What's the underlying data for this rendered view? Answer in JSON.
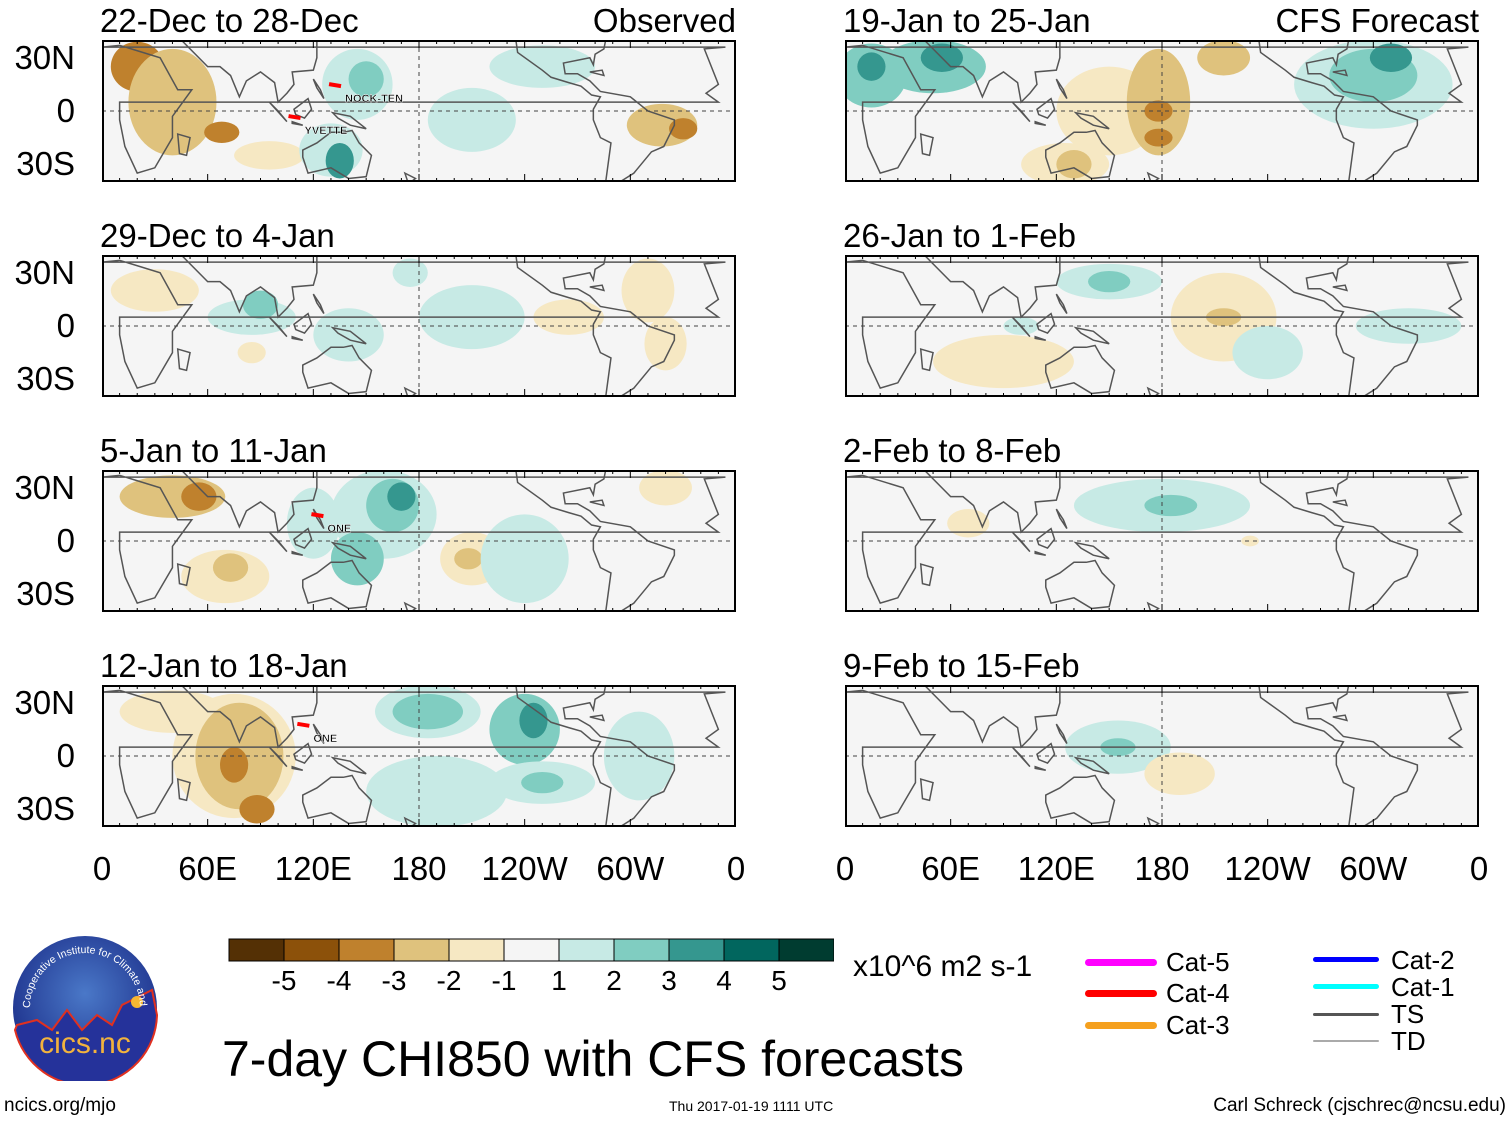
{
  "columns": [
    {
      "label": "Observed"
    },
    {
      "label": "CFS Forecast"
    }
  ],
  "y_ticks": [
    "30N",
    "0",
    "30S"
  ],
  "x_ticks": [
    "0",
    "60E",
    "120E",
    "180",
    "120W",
    "60W",
    "0"
  ],
  "panels": [
    {
      "title": "22-Dec to 28-Dec",
      "col": 0,
      "row": 0,
      "storms": [
        {
          "name": "NOCK-TEN",
          "lon": 138,
          "lat": 5
        },
        {
          "name": "YVETTE",
          "lon": 115,
          "lat": -13
        }
      ],
      "anomalies": [
        [
          20,
          25,
          15,
          14,
          -3
        ],
        [
          40,
          5,
          25,
          30,
          -2
        ],
        [
          68,
          -12,
          10,
          6,
          -3
        ],
        [
          95,
          -25,
          20,
          8,
          -1
        ],
        [
          145,
          15,
          20,
          20,
          1
        ],
        [
          150,
          18,
          10,
          10,
          2
        ],
        [
          130,
          -22,
          18,
          15,
          1
        ],
        [
          135,
          -28,
          8,
          10,
          3
        ],
        [
          210,
          -5,
          25,
          18,
          1
        ],
        [
          250,
          25,
          30,
          12,
          1
        ],
        [
          318,
          -8,
          20,
          12,
          -2
        ],
        [
          330,
          -10,
          8,
          6,
          -3
        ]
      ]
    },
    {
      "title": "29-Dec to 4-Jan",
      "col": 0,
      "row": 1,
      "storms": [],
      "anomalies": [
        [
          30,
          20,
          25,
          12,
          -1
        ],
        [
          85,
          -15,
          8,
          6,
          -1
        ],
        [
          85,
          5,
          25,
          10,
          1
        ],
        [
          90,
          12,
          10,
          8,
          2
        ],
        [
          140,
          -5,
          20,
          15,
          1
        ],
        [
          175,
          30,
          10,
          8,
          1
        ],
        [
          210,
          5,
          30,
          18,
          1
        ],
        [
          265,
          5,
          20,
          10,
          -1
        ],
        [
          310,
          20,
          15,
          18,
          -1
        ],
        [
          320,
          -10,
          12,
          15,
          -1
        ]
      ]
    },
    {
      "title": "5-Jan to 11-Jan",
      "col": 0,
      "row": 2,
      "storms": [
        {
          "name": "ONE",
          "lon": 128,
          "lat": 5
        }
      ],
      "anomalies": [
        [
          40,
          25,
          30,
          12,
          -2
        ],
        [
          55,
          25,
          10,
          8,
          -3
        ],
        [
          70,
          -20,
          25,
          15,
          -1
        ],
        [
          73,
          -15,
          10,
          8,
          -2
        ],
        [
          120,
          10,
          15,
          20,
          1
        ],
        [
          160,
          15,
          30,
          25,
          1
        ],
        [
          165,
          20,
          15,
          15,
          2
        ],
        [
          170,
          25,
          8,
          8,
          3
        ],
        [
          145,
          -10,
          15,
          15,
          2
        ],
        [
          210,
          -10,
          18,
          15,
          -1
        ],
        [
          208,
          -10,
          8,
          6,
          -2
        ],
        [
          240,
          -10,
          25,
          25,
          1
        ],
        [
          320,
          30,
          15,
          10,
          -1
        ]
      ]
    },
    {
      "title": "12-Jan to 18-Jan",
      "col": 0,
      "row": 3,
      "storms": [
        {
          "name": "ONE",
          "lon": 120,
          "lat": 8
        }
      ],
      "anomalies": [
        [
          40,
          25,
          30,
          12,
          -1
        ],
        [
          75,
          0,
          35,
          35,
          -1
        ],
        [
          78,
          0,
          25,
          30,
          -2
        ],
        [
          75,
          -5,
          8,
          10,
          -3
        ],
        [
          88,
          -30,
          10,
          8,
          -3
        ],
        [
          185,
          25,
          30,
          15,
          1
        ],
        [
          185,
          25,
          20,
          10,
          2
        ],
        [
          190,
          -20,
          40,
          20,
          1
        ],
        [
          240,
          15,
          20,
          20,
          2
        ],
        [
          245,
          20,
          8,
          10,
          3
        ],
        [
          250,
          -15,
          30,
          12,
          1
        ],
        [
          250,
          -15,
          12,
          6,
          2
        ],
        [
          305,
          0,
          20,
          25,
          1
        ]
      ]
    },
    {
      "title": "19-Jan to 25-Jan",
      "col": 1,
      "row": 0,
      "storms": [],
      "anomalies": [
        [
          15,
          20,
          20,
          18,
          2
        ],
        [
          50,
          25,
          30,
          15,
          2
        ],
        [
          55,
          30,
          12,
          8,
          3
        ],
        [
          15,
          25,
          8,
          8,
          3
        ],
        [
          150,
          0,
          30,
          25,
          -1
        ],
        [
          178,
          5,
          18,
          30,
          -2
        ],
        [
          178,
          0,
          8,
          6,
          -3
        ],
        [
          178,
          -15,
          8,
          5,
          -3
        ],
        [
          215,
          30,
          15,
          10,
          -2
        ],
        [
          125,
          -30,
          25,
          12,
          -1
        ],
        [
          130,
          -30,
          10,
          8,
          -2
        ],
        [
          300,
          15,
          45,
          25,
          1
        ],
        [
          300,
          20,
          25,
          15,
          2
        ],
        [
          310,
          30,
          12,
          8,
          3
        ]
      ]
    },
    {
      "title": "26-Jan to 1-Feb",
      "col": 1,
      "row": 1,
      "storms": [],
      "anomalies": [
        [
          150,
          25,
          30,
          10,
          1
        ],
        [
          150,
          25,
          12,
          6,
          2
        ],
        [
          90,
          -20,
          40,
          15,
          -1
        ],
        [
          215,
          5,
          30,
          25,
          -1
        ],
        [
          215,
          5,
          10,
          5,
          -2
        ],
        [
          240,
          -15,
          20,
          15,
          1
        ],
        [
          320,
          0,
          30,
          10,
          1
        ],
        [
          100,
          0,
          10,
          5,
          1
        ]
      ]
    },
    {
      "title": "2-Feb to 8-Feb",
      "col": 1,
      "row": 2,
      "storms": [],
      "anomalies": [
        [
          180,
          20,
          50,
          15,
          1
        ],
        [
          185,
          20,
          15,
          6,
          2
        ],
        [
          70,
          10,
          12,
          8,
          -1
        ],
        [
          230,
          0,
          5,
          3,
          -1
        ]
      ]
    },
    {
      "title": "9-Feb to 15-Feb",
      "col": 1,
      "row": 3,
      "storms": [],
      "anomalies": [
        [
          155,
          5,
          30,
          15,
          1
        ],
        [
          155,
          5,
          10,
          5,
          2
        ],
        [
          190,
          -10,
          20,
          12,
          -1
        ]
      ]
    }
  ],
  "colorbar": {
    "labels": [
      "-5",
      "-4",
      "-3",
      "-2",
      "-1",
      "1",
      "2",
      "3",
      "4",
      "5"
    ],
    "units": "x10^6 m2 s-1",
    "colors": [
      "#543005",
      "#8c510a",
      "#bf812d",
      "#dfc27d",
      "#f6e8c3",
      "#f5f5f5",
      "#c7eae5",
      "#80cdc1",
      "#35978f",
      "#01665e",
      "#003c30"
    ]
  },
  "legend": [
    {
      "label": "Cat-5",
      "color": "#ff00ff"
    },
    {
      "label": "Cat-4",
      "color": "#ff0000"
    },
    {
      "label": "Cat-3",
      "color": "#f5a01e"
    },
    {
      "label": "Cat-2",
      "color": "#0000ff"
    },
    {
      "label": "Cat-1",
      "color": "#00ffff"
    },
    {
      "label": "TS",
      "color": "#555555"
    },
    {
      "label": "TD",
      "color": "#aaaaaa"
    }
  ],
  "title": "7-day CHI850 with CFS forecasts",
  "logo": {
    "ring_text": "Cooperative Institute for Climate and Satellites",
    "name": "cics.nc"
  },
  "footer": {
    "url": "ncics.org/mjo",
    "timestamp": "Thu 2017-01-19 1111 UTC",
    "credit": "Carl Schreck (cjschrec@ncsu.edu)"
  }
}
